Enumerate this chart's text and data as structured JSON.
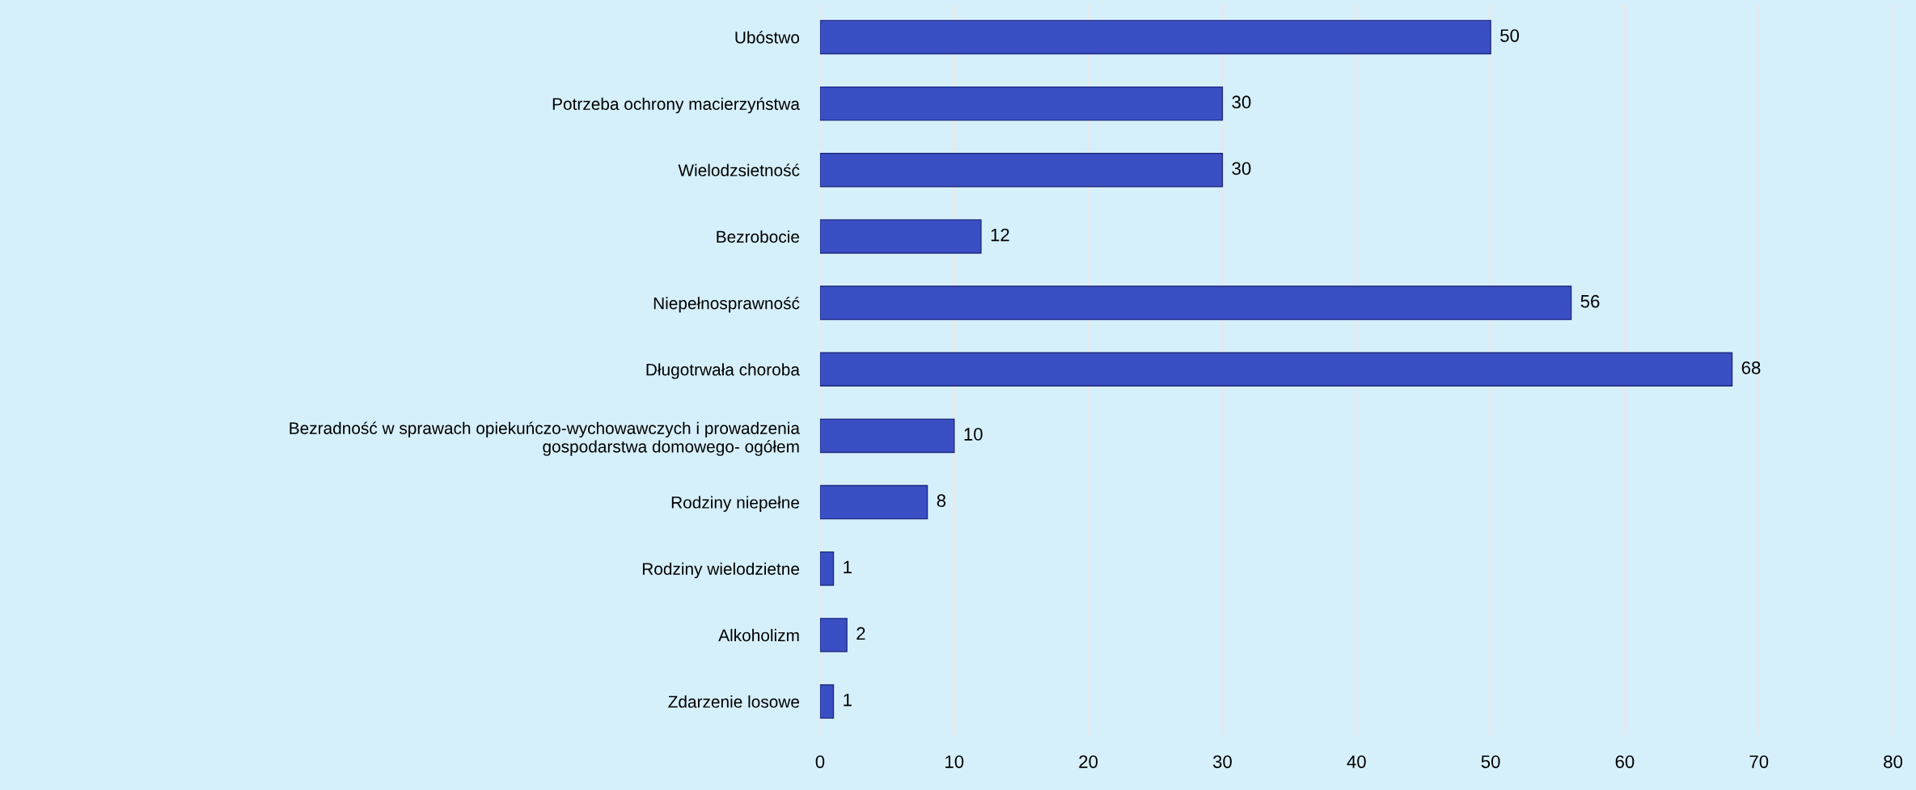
{
  "chart_data": {
    "type": "bar",
    "orientation": "horizontal",
    "categories": [
      "Ubóstwo",
      "Potrzeba ochrony macierzyństwa",
      "Wielodzsietność",
      "Bezrobocie",
      "Niepełnosprawność",
      "Długotrwała choroba",
      "Bezradność w sprawach opiekuńczo-wychowawczych i prowadzenia\ngospodarstwa domowego- ogółem",
      "Rodziny niepełne",
      "Rodziny wielodzietne",
      "Alkoholizm",
      "Zdarzenie losowe"
    ],
    "values": [
      50,
      30,
      30,
      12,
      56,
      68,
      10,
      8,
      1,
      2,
      1
    ],
    "color": "#3b4fc4",
    "xlim": [
      0,
      80
    ],
    "xticks": [
      0,
      10,
      20,
      30,
      40,
      50,
      60,
      70,
      80
    ],
    "grid": "x",
    "data_labels": true
  }
}
